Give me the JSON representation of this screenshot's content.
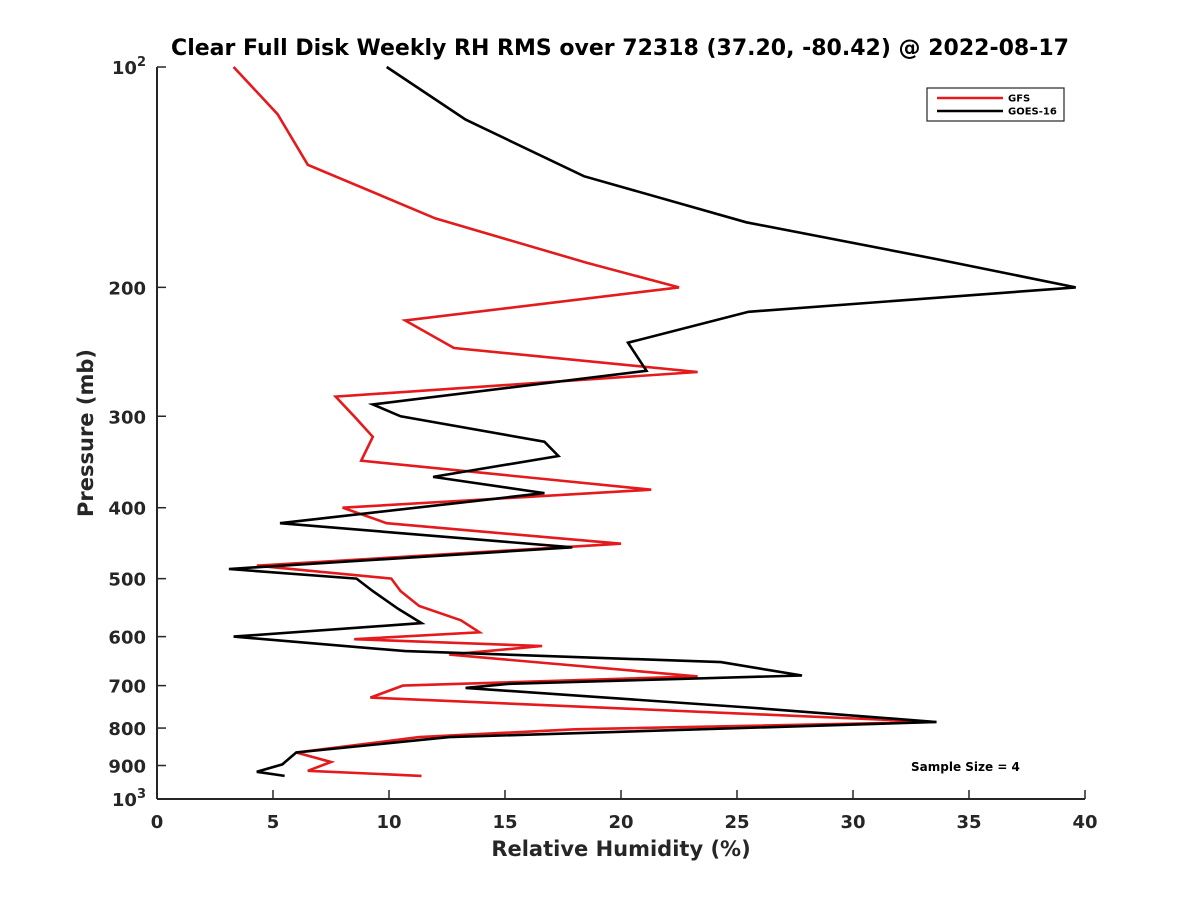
{
  "chart_data": {
    "type": "line",
    "title": "Clear Full Disk Weekly RH RMS over 72318 (37.20, -80.42) @ 2022-08-17",
    "xlabel": "Relative Humidity (%)",
    "ylabel": "Pressure (mb)",
    "xlim": [
      0,
      40
    ],
    "ylim": [
      100,
      1000
    ],
    "yscale": "log",
    "yreversed": true,
    "x_ticks": [
      "0",
      "5",
      "10",
      "15",
      "20",
      "25",
      "30",
      "35",
      "40"
    ],
    "y_ticks": [
      {
        "value": 200,
        "label": "200"
      },
      {
        "value": 300,
        "label": "300"
      },
      {
        "value": 400,
        "label": "400"
      },
      {
        "value": 500,
        "label": "500"
      },
      {
        "value": 600,
        "label": "600"
      },
      {
        "value": 700,
        "label": "700"
      },
      {
        "value": 800,
        "label": "800"
      },
      {
        "value": 900,
        "label": "900"
      }
    ],
    "y_top_label": {
      "base": "10",
      "exp": "2"
    },
    "y_bottom_label": {
      "base": "10",
      "exp": "3"
    },
    "grid": false,
    "legend_position": "top-right",
    "annotation": "Sample Size = 4",
    "series": [
      {
        "name": "GFS",
        "color": "#e41a1c",
        "points": [
          [
            3.3,
            100
          ],
          [
            5.2,
            116
          ],
          [
            6.5,
            136
          ],
          [
            12.0,
            161
          ],
          [
            18.5,
            185
          ],
          [
            22.5,
            200
          ],
          [
            10.7,
            222
          ],
          [
            12.8,
            242
          ],
          [
            23.3,
            261
          ],
          [
            7.7,
            282
          ],
          [
            8.5,
            300
          ],
          [
            9.3,
            320
          ],
          [
            8.8,
            345
          ],
          [
            21.3,
            378
          ],
          [
            8.0,
            400
          ],
          [
            9.9,
            420
          ],
          [
            20.0,
            448
          ],
          [
            4.3,
            480
          ],
          [
            10.1,
            500
          ],
          [
            10.5,
            520
          ],
          [
            11.3,
            545
          ],
          [
            13.1,
            570
          ],
          [
            13.9,
            592
          ],
          [
            8.5,
            605
          ],
          [
            16.6,
            618
          ],
          [
            12.6,
            635
          ],
          [
            23.3,
            680
          ],
          [
            10.6,
            700
          ],
          [
            9.2,
            727
          ],
          [
            33.6,
            785
          ],
          [
            18.0,
            803
          ],
          [
            11.3,
            823
          ],
          [
            6.0,
            864
          ],
          [
            7.5,
            890
          ],
          [
            6.5,
            915
          ],
          [
            11.4,
            930
          ]
        ]
      },
      {
        "name": "GOES-16",
        "color": "#000000",
        "points": [
          [
            9.9,
            100
          ],
          [
            13.3,
            118
          ],
          [
            18.4,
            141
          ],
          [
            25.4,
            163
          ],
          [
            33.6,
            183
          ],
          [
            39.6,
            200
          ],
          [
            25.5,
            216
          ],
          [
            20.3,
            238
          ],
          [
            21.1,
            260
          ],
          [
            9.3,
            289
          ],
          [
            10.5,
            300
          ],
          [
            16.7,
            325
          ],
          [
            17.3,
            340
          ],
          [
            11.9,
            363
          ],
          [
            16.7,
            382
          ],
          [
            5.3,
            420
          ],
          [
            17.9,
            453
          ],
          [
            3.1,
            485
          ],
          [
            8.6,
            500
          ],
          [
            9.3,
            520
          ],
          [
            10.4,
            550
          ],
          [
            11.4,
            575
          ],
          [
            3.3,
            600
          ],
          [
            10.7,
            628
          ],
          [
            24.3,
            650
          ],
          [
            27.8,
            678
          ],
          [
            15.2,
            696
          ],
          [
            13.3,
            705
          ],
          [
            25.5,
            750
          ],
          [
            33.6,
            785
          ],
          [
            12.6,
            823
          ],
          [
            6.0,
            864
          ],
          [
            5.4,
            897
          ],
          [
            4.3,
            918
          ],
          [
            5.5,
            930
          ]
        ]
      }
    ]
  }
}
